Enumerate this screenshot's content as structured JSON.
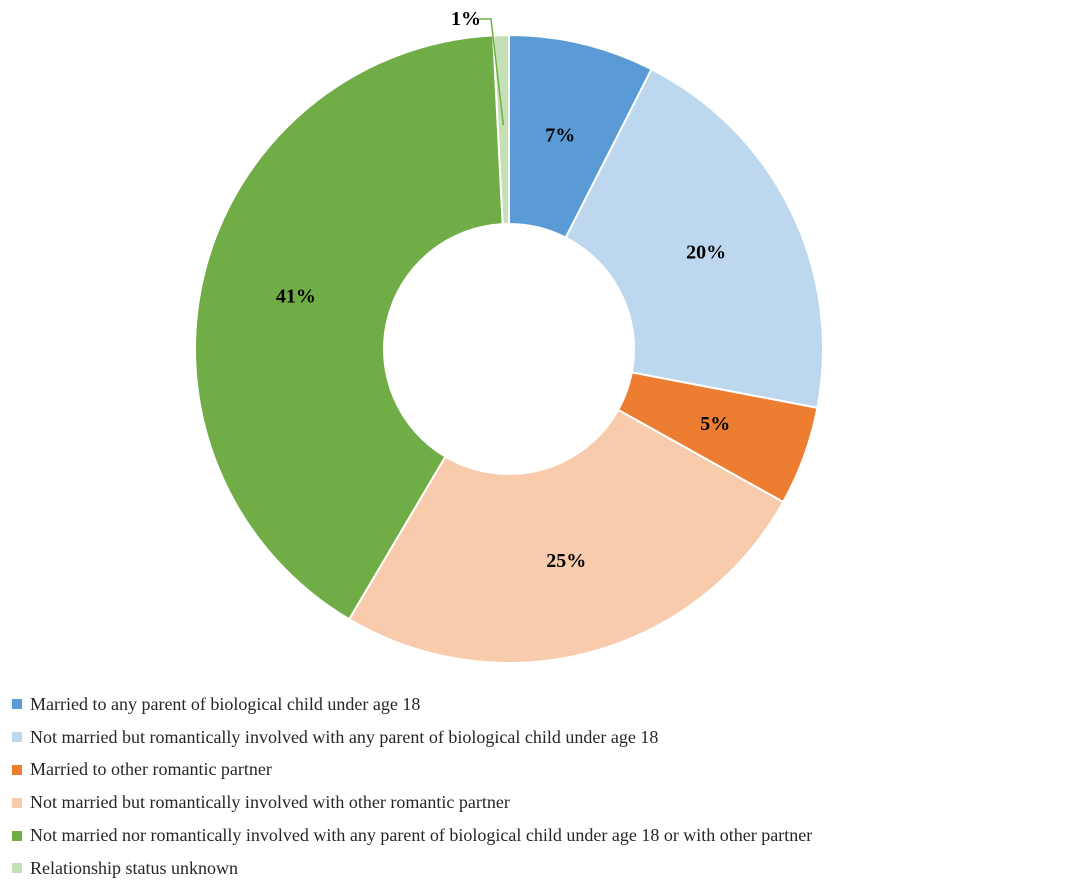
{
  "chart_data": {
    "type": "pie",
    "donut": true,
    "title": "",
    "categories": [
      "Married to any parent of biological child under age 18",
      "Not married but romantically involved with any parent of biological child under age 18",
      "Married to other romantic partner",
      "Not married but romantically involved with other romantic partner",
      "Not married nor romantically involved with any parent of biological child under age 18 or with other partner",
      "Relationship status unknown"
    ],
    "values": [
      7.5,
      20.5,
      5.1,
      25.4,
      40.7,
      0.8
    ],
    "labels": [
      "7%",
      "20%",
      "5%",
      "25%",
      "41%",
      "1%"
    ],
    "colors": [
      "#5B9BD5",
      "#BDD7EE",
      "#ED7D31",
      "#F8CBAD",
      "#70AD47",
      "#C5E0B4"
    ],
    "legend_position": "bottom"
  }
}
